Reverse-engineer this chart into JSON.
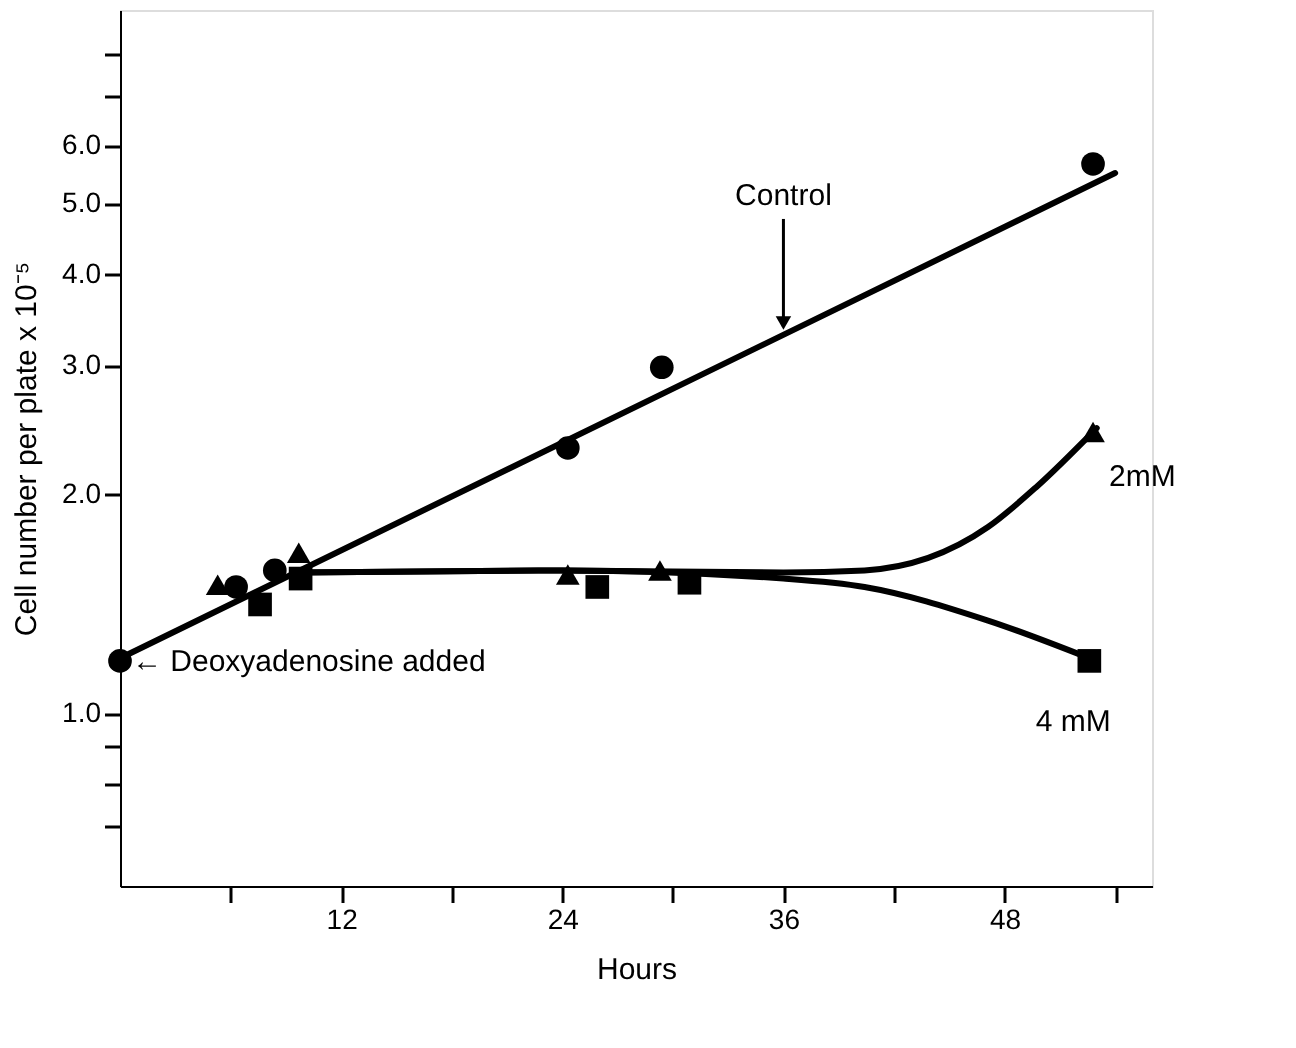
{
  "chart_data": {
    "type": "scatter",
    "xlabel": "Hours",
    "ylabel": "Cell number per plate x 10⁻⁵",
    "xlim": [
      0,
      56
    ],
    "xticks": [
      {
        "value": 6,
        "label": null
      },
      12,
      {
        "value": 18,
        "label": null
      },
      24,
      {
        "value": 30,
        "label": null
      },
      36,
      {
        "value": 42,
        "label": null
      },
      48,
      {
        "value": 54,
        "label": null
      }
    ],
    "ylim": [
      0.58,
      9.2
    ],
    "log": true,
    "yticks": [
      {
        "value": 0.7,
        "label": null
      },
      {
        "value": 0.8,
        "label": null
      },
      {
        "value": 0.9,
        "label": null
      },
      {
        "value": 1,
        "label": "1.0"
      },
      {
        "value": 2,
        "label": "2.0"
      },
      {
        "value": 3,
        "label": "3.0"
      },
      {
        "value": 4,
        "label": "4.0"
      },
      {
        "value": 5,
        "label": "5.0"
      },
      {
        "value": 6,
        "label": "6.0"
      },
      {
        "value": 7,
        "label": null
      },
      {
        "value": 8,
        "label": null
      }
    ],
    "grid": false,
    "legend": false,
    "series": [
      {
        "type": "line",
        "color": "#000000",
        "marker": "none",
        "line_style": "solid",
        "x": [
          0,
          54
        ],
        "values": [
          1.19,
          5.5
        ]
      },
      {
        "type": "line",
        "color": "#000000",
        "marker": "none",
        "line_style": "solid",
        "x": [
          9.7,
          24,
          36,
          40.4,
          47.1,
          49.7,
          53
        ],
        "values": [
          1.56,
          1.57,
          1.56,
          1.57,
          1.8,
          2.04,
          2.46
        ]
      },
      {
        "type": "line",
        "color": "#000000",
        "marker": "none",
        "line_style": "solid",
        "x": [
          9.7,
          24,
          36,
          40.4,
          47.1,
          52.6
        ],
        "values": [
          1.56,
          1.57,
          1.53,
          1.49,
          1.34,
          1.19
        ]
      },
      {
        "color": "#000000",
        "marker": "circle",
        "x": [
          0,
          6.3,
          8.4,
          24.3,
          29.4,
          52.8
        ],
        "values": [
          1.18,
          1.49,
          1.57,
          2.31,
          2.98,
          5.66
        ]
      },
      {
        "color": "#000000",
        "marker": "triangle",
        "x": [
          5.3,
          9.7,
          24.3,
          29.3,
          52.8
        ],
        "values": [
          1.5,
          1.66,
          1.55,
          1.57,
          2.43
        ]
      },
      {
        "color": "#000000",
        "marker": "square",
        "x": [
          7.6,
          9.8,
          25.9,
          30.9,
          52.6
        ],
        "values": [
          1.41,
          1.53,
          1.49,
          1.51,
          1.18
        ]
      }
    ],
    "annotations": [
      {
        "text": "← Deoxyadenosine added",
        "x": 0,
        "y": 1.18
      },
      {
        "text": "Control",
        "x": 36,
        "y": 3.3
      },
      {
        "text": "2mM",
        "x": 52.8,
        "y": 2.43
      },
      {
        "text": "4 mM",
        "x": 52.6,
        "y": 1.18
      }
    ]
  }
}
